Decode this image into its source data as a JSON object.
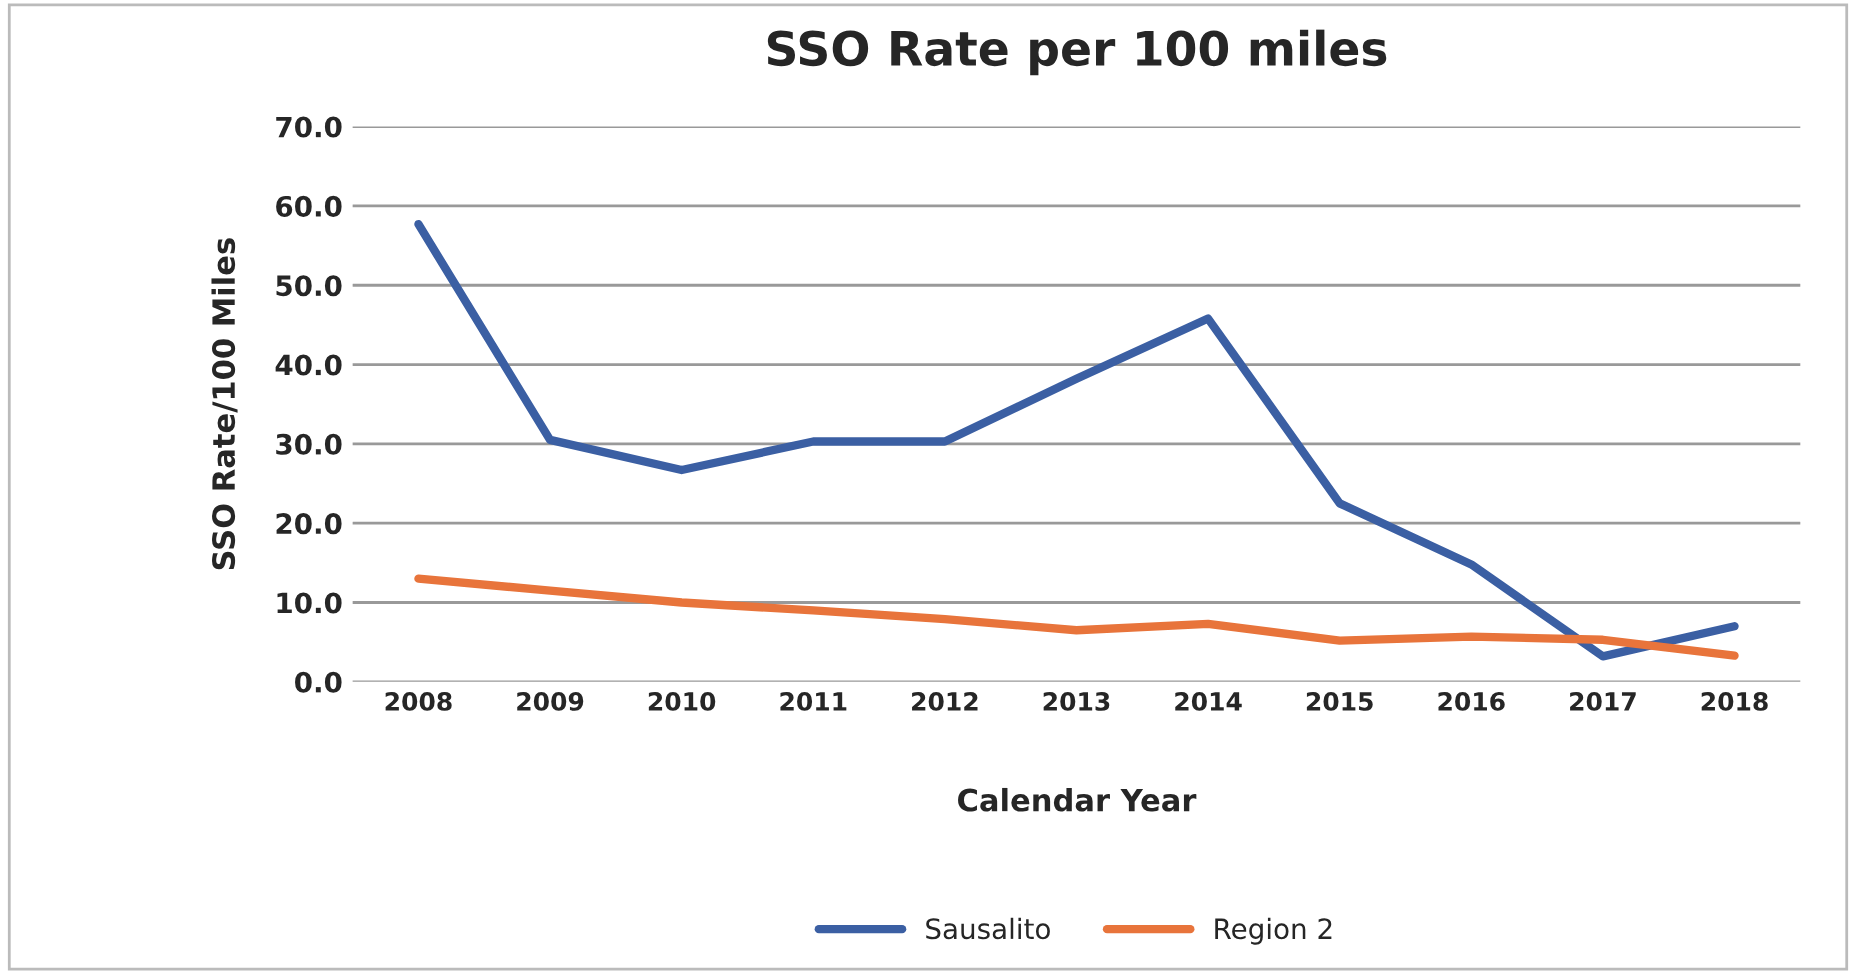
{
  "chart_data": {
    "type": "line",
    "title": "SSO Rate per 100 miles",
    "xlabel": "Calendar Year",
    "ylabel": "SSO Rate/100 Miles",
    "categories": [
      "2008",
      "2009",
      "2010",
      "2011",
      "2012",
      "2013",
      "2014",
      "2015",
      "2016",
      "2017",
      "2018"
    ],
    "series": [
      {
        "name": "Sausalito",
        "color": "#3b5fa3",
        "values": [
          57.7,
          30.5,
          26.7,
          30.3,
          30.3,
          38.2,
          45.8,
          22.5,
          14.8,
          3.2,
          7.0
        ]
      },
      {
        "name": "Region 2",
        "color": "#e8743b",
        "values": [
          13.0,
          11.5,
          10.0,
          9.0,
          7.9,
          6.5,
          7.3,
          5.2,
          5.7,
          5.3,
          3.3
        ]
      }
    ],
    "ylim": [
      0,
      70
    ],
    "yticks": [
      {
        "value": 0,
        "label": "0.0"
      },
      {
        "value": 10,
        "label": "10.0"
      },
      {
        "value": 20,
        "label": "20.0"
      },
      {
        "value": 30,
        "label": "30.0"
      },
      {
        "value": 40,
        "label": "40.0"
      },
      {
        "value": 50,
        "label": "50.0"
      },
      {
        "value": 60,
        "label": "60.0"
      },
      {
        "value": 70,
        "label": "70.0"
      }
    ],
    "grid": "y",
    "legend": "bottom",
    "marker": "none",
    "line_style": "solid"
  }
}
